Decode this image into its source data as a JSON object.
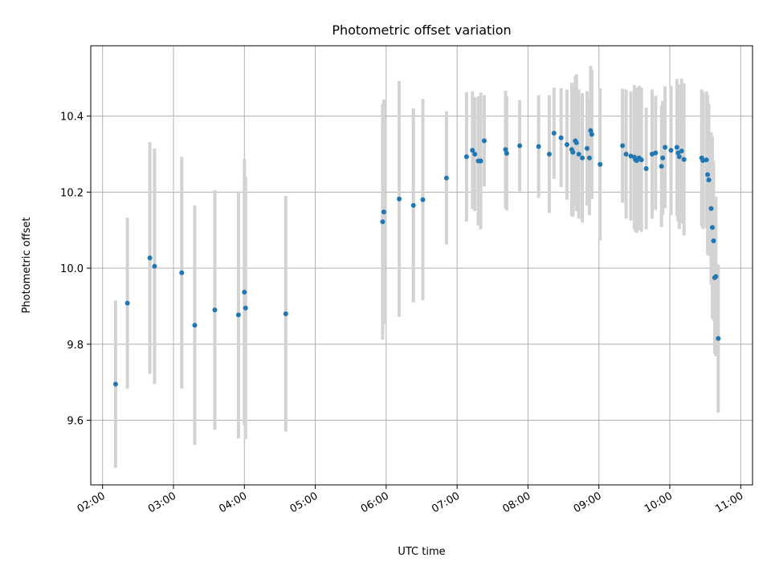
{
  "chart_data": {
    "type": "scatter",
    "title": "Photometric offset variation",
    "xlabel": "UTC time",
    "ylabel": "Photometric offset",
    "x_tick_labels": [
      "02:00",
      "03:00",
      "04:00",
      "05:00",
      "06:00",
      "07:00",
      "08:00",
      "09:00",
      "10:00",
      "11:00"
    ],
    "y_tick_labels": [
      "9.6",
      "9.8",
      "10.0",
      "10.2",
      "10.4"
    ],
    "xlim": [
      "01:50",
      "11:10"
    ],
    "ylim": [
      9.43,
      10.585
    ],
    "grid": true,
    "legend": "none",
    "colors": {
      "points": "#1f77b4",
      "error_bars": "#d3d3d3",
      "grid": "#b0b0b0"
    },
    "series": [
      {
        "x": [
          "02:11",
          "02:21",
          "02:40",
          "02:44",
          "03:07",
          "03:18",
          "03:35",
          "03:55",
          "04:00",
          "04:01",
          "04:35",
          "05:57",
          "05:58",
          "06:11",
          "06:23",
          "06:31",
          "06:51",
          "07:08",
          "07:13",
          "07:15",
          "07:18",
          "07:20",
          "07:23",
          "07:41",
          "07:42",
          "07:53",
          "08:09",
          "08:18",
          "08:22",
          "08:28",
          "08:33",
          "08:37",
          "08:38",
          "08:40",
          "08:41",
          "08:43",
          "08:46",
          "08:50",
          "08:52",
          "08:53",
          "08:54",
          "09:01",
          "09:20",
          "09:23",
          "09:27",
          "09:30",
          "09:31",
          "09:32",
          "09:34",
          "09:36",
          "09:40",
          "09:45",
          "09:48",
          "09:53",
          "09:54",
          "09:56",
          "10:01",
          "10:06",
          "10:07",
          "10:08",
          "10:10",
          "10:12",
          "10:27",
          "10:28",
          "10:31",
          "10:32",
          "10:33",
          "10:35",
          "10:36",
          "10:37",
          "10:38",
          "10:39",
          "10:41"
        ],
        "y": [
          9.695,
          9.908,
          10.027,
          10.005,
          9.988,
          9.85,
          9.89,
          9.877,
          9.937,
          9.895,
          9.88,
          10.122,
          10.148,
          10.182,
          10.165,
          10.18,
          10.237,
          10.293,
          10.31,
          10.3,
          10.282,
          10.282,
          10.335,
          10.312,
          10.302,
          10.322,
          10.32,
          10.3,
          10.355,
          10.343,
          10.325,
          10.312,
          10.305,
          10.335,
          10.33,
          10.3,
          10.29,
          10.315,
          10.29,
          10.362,
          10.352,
          10.273,
          10.322,
          10.3,
          10.295,
          10.292,
          10.285,
          10.283,
          10.29,
          10.285,
          10.262,
          10.3,
          10.303,
          10.268,
          10.29,
          10.318,
          10.31,
          10.318,
          10.303,
          10.293,
          10.308,
          10.286,
          10.29,
          10.283,
          10.285,
          10.246,
          10.232,
          10.157,
          10.107,
          10.072,
          9.975,
          9.978,
          9.815
        ],
        "yerr": [
          0.22,
          0.225,
          0.305,
          0.31,
          0.305,
          0.315,
          0.315,
          0.325,
          0.35,
          0.345,
          0.31,
          0.31,
          0.295,
          0.31,
          0.255,
          0.265,
          0.175,
          0.17,
          0.155,
          0.15,
          0.17,
          0.18,
          0.12,
          0.155,
          0.15,
          0.12,
          0.135,
          0.155,
          0.12,
          0.13,
          0.145,
          0.175,
          0.17,
          0.17,
          0.18,
          0.17,
          0.17,
          0.15,
          0.15,
          0.17,
          0.17,
          0.2,
          0.15,
          0.17,
          0.17,
          0.19,
          0.19,
          0.19,
          0.19,
          0.19,
          0.16,
          0.17,
          0.15,
          0.16,
          0.15,
          0.16,
          0.17,
          0.18,
          0.18,
          0.19,
          0.19,
          0.2,
          0.18,
          0.18,
          0.18,
          0.21,
          0.2,
          0.2,
          0.24,
          0.21,
          0.2,
          0.21,
          0.195
        ]
      }
    ]
  }
}
